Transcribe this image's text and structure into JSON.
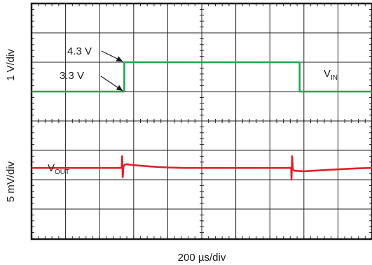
{
  "chart_data": {
    "type": "line",
    "title": "",
    "xlabel": "200 µs/div",
    "x_divisions": 10,
    "x_unit": "µs",
    "x_per_div": 200,
    "xlim": [
      0,
      2000
    ],
    "grid": true,
    "panels": [
      {
        "ylabel": "1 V/div",
        "ylim": [
          2.3,
          6.3
        ],
        "y_divisions": 4,
        "series": [
          {
            "name": "V",
            "name_sub": "IN",
            "color": "#1fa84f",
            "x": [
              0,
              545,
              545,
              1575,
              1575,
              2000
            ],
            "y": [
              3.3,
              3.3,
              4.3,
              4.3,
              3.3,
              3.3
            ]
          }
        ],
        "annotations": [
          {
            "text": "4.3 V",
            "target_x": 545,
            "target_y": 4.3
          },
          {
            "text": "3.3 V",
            "target_x": 545,
            "target_y": 3.3
          }
        ]
      },
      {
        "ylabel": "5 mV/div",
        "ylim": [
          -15,
          10
        ],
        "y_divisions": 5,
        "series": [
          {
            "name": "V",
            "name_sub": "OUT",
            "color": "#e0202a",
            "x": [
              0,
              530,
              532,
              536,
              540,
              548,
              560,
              600,
              700,
              800,
              900,
              1000,
              1200,
              1400,
              1525,
              1527,
              1531,
              1535,
              1545,
              1600,
              1700,
              1800,
              1900,
              2000
            ],
            "y": [
              0,
              0,
              2.5,
              -2,
              0.3,
              0.7,
              0.8,
              0.6,
              0.3,
              0.1,
              0,
              0,
              0,
              0,
              0,
              -2.5,
              2.5,
              -0.3,
              -0.6,
              -0.7,
              -0.5,
              -0.3,
              -0.1,
              0
            ]
          }
        ]
      }
    ]
  }
}
